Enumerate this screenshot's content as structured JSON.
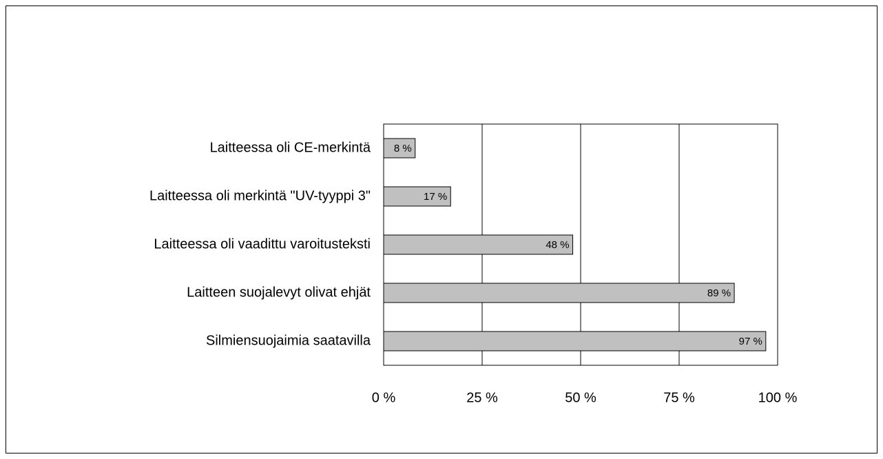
{
  "chart_data": {
    "type": "bar",
    "orientation": "horizontal",
    "categories": [
      "Laitteessa oli CE-merkintä",
      "Laitteessa oli merkintä \"UV-tyyppi 3\"",
      "Laitteessa oli vaadittu varoitusteksti",
      "Laitteen suojalevyt olivat ehjät",
      "Silmiensuojaimia saatavilla"
    ],
    "values": [
      8,
      17,
      48,
      89,
      97
    ],
    "value_labels": [
      "8 %",
      "17 %",
      "48 %",
      "89 %",
      "97 %"
    ],
    "color": "#c0c0c0",
    "xlim": [
      0,
      100
    ],
    "xticks": [
      {
        "value": 0,
        "label": "0 %"
      },
      {
        "value": 25,
        "label": "25 %"
      },
      {
        "value": 50,
        "label": "50 %"
      },
      {
        "value": 75,
        "label": "75 %"
      },
      {
        "value": 100,
        "label": "100 %"
      }
    ],
    "grid": true
  }
}
